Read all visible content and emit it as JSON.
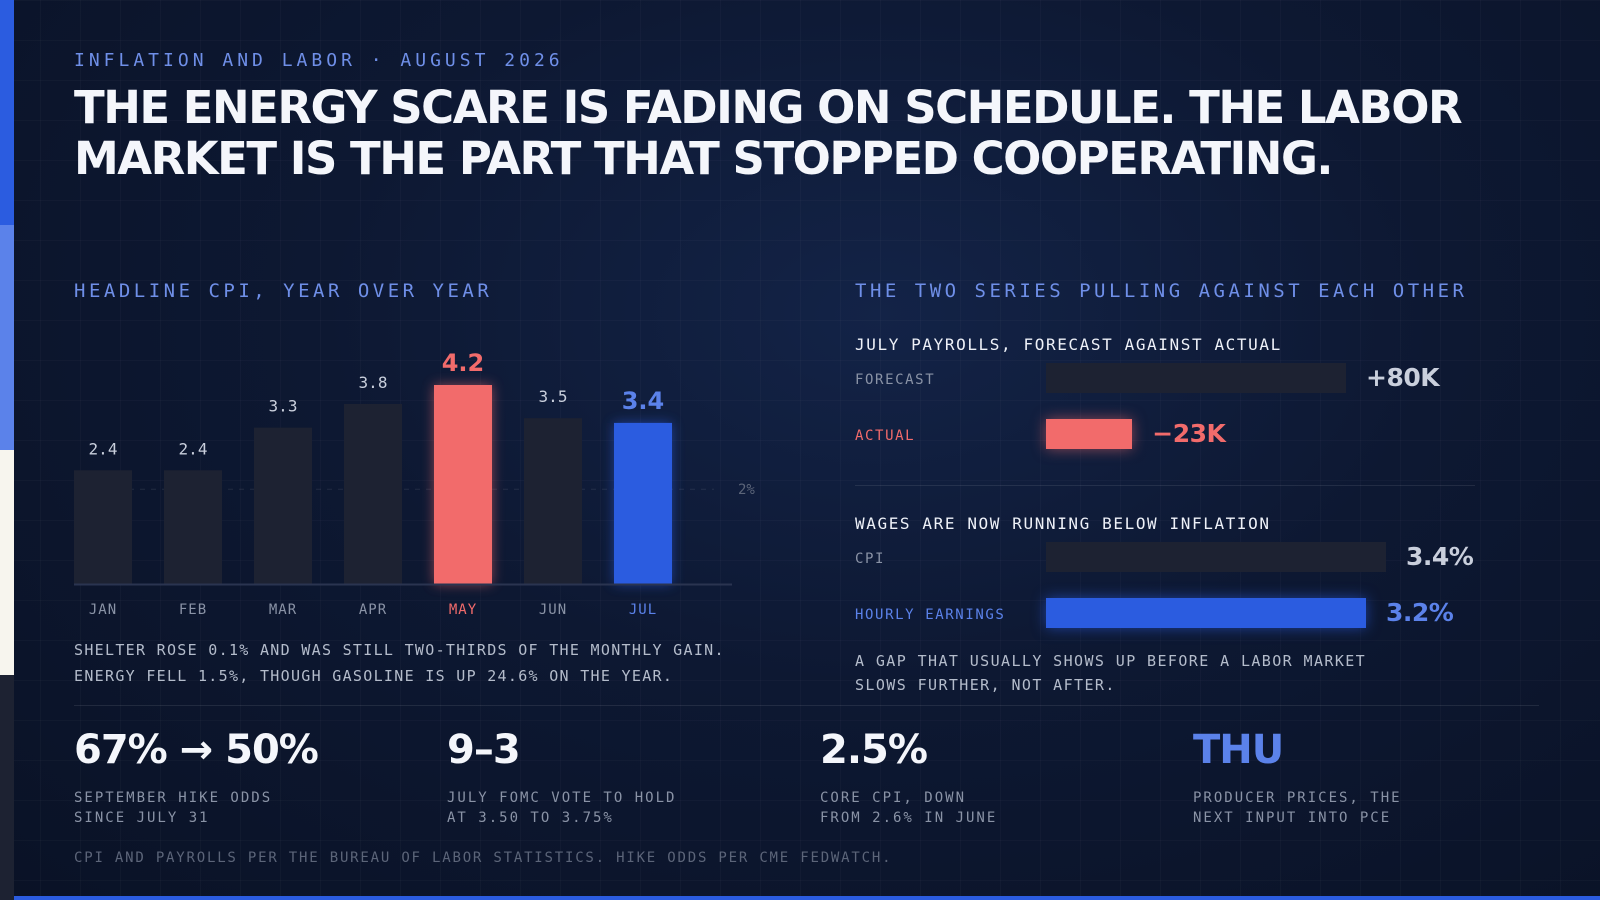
{
  "kicker": "INFLATION AND LABOR · AUGUST 2026",
  "headline": "THE ENERGY SCARE IS FADING ON SCHEDULE. THE LABOR MARKET IS THE PART THAT STOPPED COOPERATING.",
  "colors": {
    "accent_blue": "#2b5ce0",
    "accent_coral": "#f26b6b",
    "bar_neutral": "#1d2232",
    "muted_text": "#8a93a6",
    "sidebar": [
      "#2b5ce0",
      "#5b82ea",
      "#f7f5ee",
      "#1d2232"
    ]
  },
  "cpi_section": {
    "title": "HEADLINE CPI, YEAR OVER YEAR",
    "note_line1": "SHELTER ROSE 0.1% AND WAS STILL TWO-THIRDS OF THE MONTHLY GAIN.",
    "note_line2": "ENERGY FELL 1.5%, THOUGH GASOLINE IS UP 24.6% ON THE YEAR."
  },
  "chart_data": {
    "type": "bar",
    "title": "HEADLINE CPI, YEAR OVER YEAR",
    "categories": [
      "JAN",
      "FEB",
      "MAR",
      "APR",
      "MAY",
      "JUN",
      "JUL"
    ],
    "values": [
      2.4,
      2.4,
      3.3,
      3.8,
      4.2,
      3.5,
      3.4
    ],
    "value_labels": [
      "2.4",
      "2.4",
      "3.3",
      "3.8",
      "4.2",
      "3.5",
      "3.4"
    ],
    "highlight": {
      "MAY": "coral",
      "JUL": "blue"
    },
    "ylim": [
      0,
      4.2
    ],
    "reference_line": {
      "value": 2,
      "label": "2%"
    },
    "grid": false,
    "xlabel": "",
    "ylabel": ""
  },
  "series_section": {
    "title": "THE TWO SERIES PULLING AGAINST EACH OTHER",
    "payrolls": {
      "title": "JULY PAYROLLS, FORECAST AGAINST ACTUAL",
      "rows": [
        {
          "label": "FORECAST",
          "value": 80,
          "display": "+80K"
        },
        {
          "label": "ACTUAL",
          "value": -23,
          "display": "−23K"
        }
      ]
    },
    "wages": {
      "title": "WAGES ARE NOW RUNNING BELOW INFLATION",
      "rows": [
        {
          "label": "CPI",
          "value": 3.4,
          "display": "3.4%"
        },
        {
          "label": "HOURLY EARNINGS",
          "value": 3.2,
          "display": "3.2%"
        }
      ]
    },
    "note_line1": "A GAP THAT USUALLY SHOWS UP BEFORE A LABOR MARKET",
    "note_line2": "SLOWS FURTHER, NOT AFTER."
  },
  "stats": [
    {
      "big": "67% → 50%",
      "line1": "SEPTEMBER HIKE ODDS",
      "line2": "SINCE JULY 31"
    },
    {
      "big": "9–3",
      "line1": "JULY FOMC VOTE TO HOLD",
      "line2": "AT 3.50 TO 3.75%"
    },
    {
      "big": "2.5%",
      "line1": "CORE CPI, DOWN",
      "line2": "FROM 2.6% IN JUNE"
    },
    {
      "big": "THU",
      "line1": "PRODUCER PRICES, THE",
      "line2": "NEXT INPUT INTO PCE"
    }
  ],
  "footer": "CPI AND PAYROLLS PER THE BUREAU OF LABOR STATISTICS. HIKE ODDS PER CME FEDWATCH."
}
